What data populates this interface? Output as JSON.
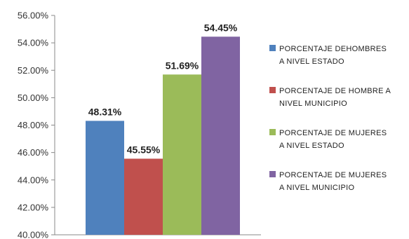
{
  "chart_data": {
    "type": "bar",
    "ylim": [
      40,
      56
    ],
    "ytick_step": 2,
    "ytick_labels": [
      "40.00%",
      "42.00%",
      "44.00%",
      "46.00%",
      "48.00%",
      "50.00%",
      "52.00%",
      "54.00%",
      "56.00%"
    ],
    "grid": false,
    "legend_position": "right",
    "series": [
      {
        "name_lines": [
          "PORCENTAJE DEHOMBRES",
          "A NIVEL ESTADO"
        ],
        "value": 48.31,
        "label": "48.31%",
        "color": "#4f81bd"
      },
      {
        "name_lines": [
          "PORCENTAJE DE HOMBRE A",
          "NIVEL MUNICIPIO"
        ],
        "value": 45.55,
        "label": "45.55%",
        "color": "#c0504d"
      },
      {
        "name_lines": [
          "PORCENTAJE DE MUJERES",
          "A NIVEL ESTADO"
        ],
        "value": 51.69,
        "label": "51.69%",
        "color": "#9bbb59"
      },
      {
        "name_lines": [
          "PORCENTAJE DE MUJERES",
          "A NIVEL MUNICIPIO"
        ],
        "value": 54.45,
        "label": "54.45%",
        "color": "#8064a2"
      }
    ]
  }
}
